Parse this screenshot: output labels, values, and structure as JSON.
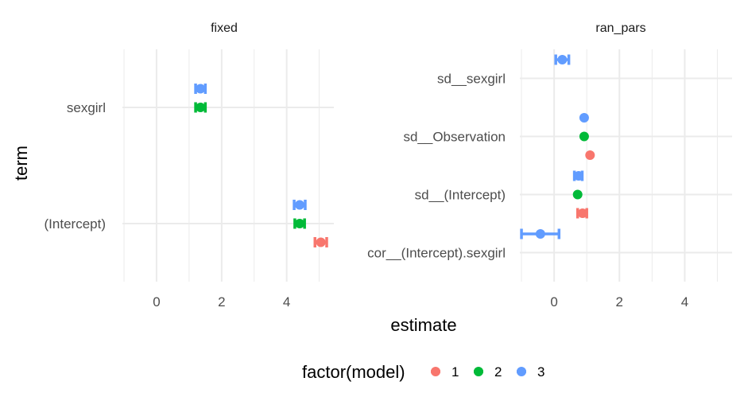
{
  "chart_data": {
    "type": "scatter",
    "subtype": "dot-whisker",
    "xlabel": "estimate",
    "ylabel": "term",
    "xlim": [
      -1.05,
      5.45
    ],
    "x_ticks": [
      0,
      2,
      4
    ],
    "grid": true,
    "legend": {
      "title": "factor(model)",
      "position": "bottom",
      "entries": [
        {
          "label": "1",
          "color": "#F8766D"
        },
        {
          "label": "2",
          "color": "#00BA38"
        },
        {
          "label": "3",
          "color": "#619CFF"
        }
      ]
    },
    "panels": [
      {
        "title": "fixed",
        "terms": [
          "sexgirl",
          "(Intercept)"
        ],
        "points": [
          {
            "term": "sexgirl",
            "model": "3",
            "estimate": 1.35,
            "low": 1.2,
            "high": 1.5
          },
          {
            "term": "sexgirl",
            "model": "2",
            "estimate": 1.35,
            "low": 1.2,
            "high": 1.5
          },
          {
            "term": "(Intercept)",
            "model": "3",
            "estimate": 4.4,
            "low": 4.23,
            "high": 4.57
          },
          {
            "term": "(Intercept)",
            "model": "2",
            "estimate": 4.4,
            "low": 4.25,
            "high": 4.55
          },
          {
            "term": "(Intercept)",
            "model": "1",
            "estimate": 5.05,
            "low": 4.87,
            "high": 5.23
          }
        ]
      },
      {
        "title": "ran_pars",
        "terms": [
          "sd__sexgirl",
          "sd__Observation",
          "sd__(Intercept)",
          "cor__(Intercept).sexgirl"
        ],
        "points": [
          {
            "term": "sd__sexgirl",
            "model": "3",
            "estimate": 0.25,
            "low": 0.05,
            "high": 0.45
          },
          {
            "term": "sd__Observation",
            "model": "3",
            "estimate": 0.92,
            "low": 0.92,
            "high": 0.92
          },
          {
            "term": "sd__Observation",
            "model": "2",
            "estimate": 0.92,
            "low": 0.92,
            "high": 0.92
          },
          {
            "term": "sd__Observation",
            "model": "1",
            "estimate": 1.1,
            "low": 1.1,
            "high": 1.1
          },
          {
            "term": "sd__(Intercept)",
            "model": "3",
            "estimate": 0.75,
            "low": 0.62,
            "high": 0.86
          },
          {
            "term": "sd__(Intercept)",
            "model": "2",
            "estimate": 0.72,
            "low": 0.72,
            "high": 0.72
          },
          {
            "term": "sd__(Intercept)",
            "model": "1",
            "estimate": 0.87,
            "low": 0.72,
            "high": 1.0
          },
          {
            "term": "cor__(Intercept).sexgirl",
            "model": "3",
            "estimate": -0.42,
            "low": -1.0,
            "high": 0.15
          }
        ]
      }
    ]
  }
}
